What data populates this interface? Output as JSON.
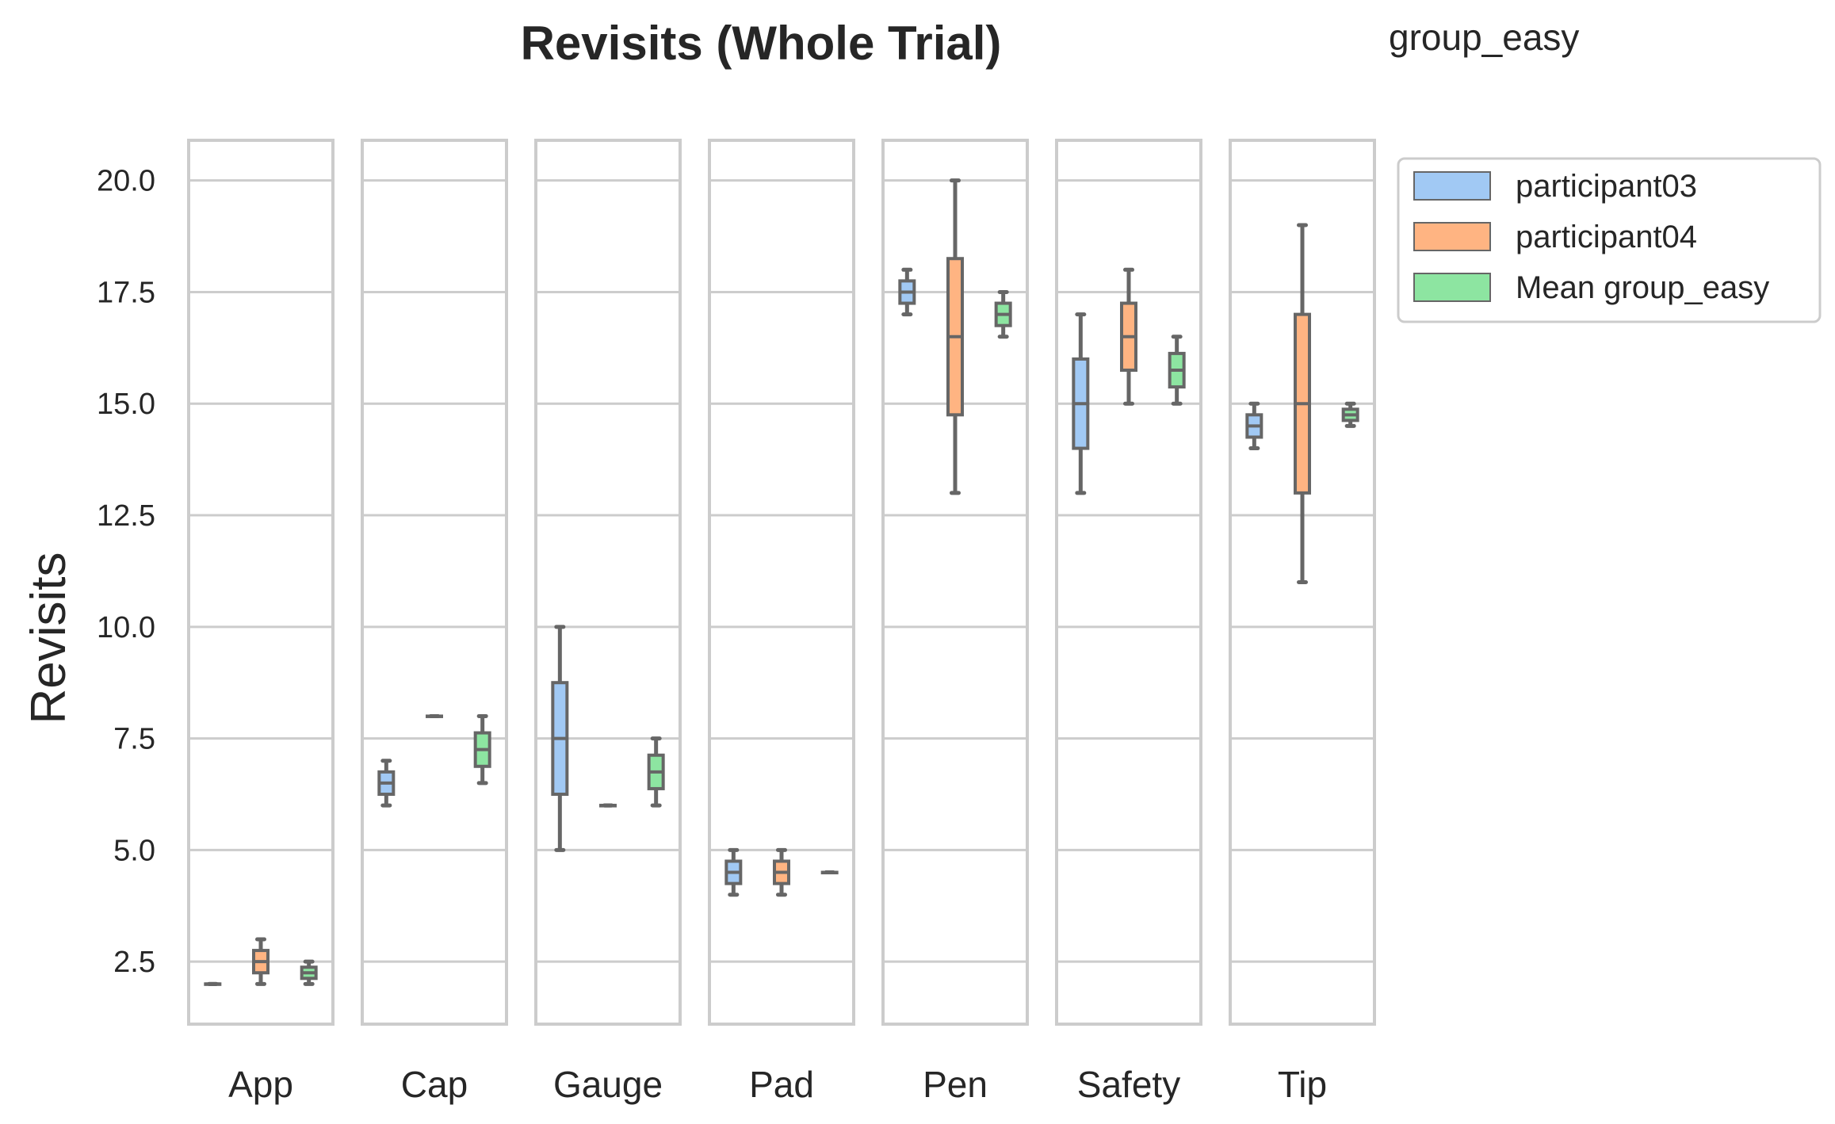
{
  "chart_data": {
    "type": "boxplot",
    "title": "Revisits (Whole Trial)",
    "subtitle": "group_easy",
    "ylabel": "Revisits",
    "ylim": [
      1.1,
      20.9
    ],
    "yticks": [
      "2.5",
      "5.0",
      "7.5",
      "10.0",
      "12.5",
      "15.0",
      "17.5",
      "20.0"
    ],
    "grid": true,
    "legend_position": "right-outside",
    "categories": [
      "App",
      "Cap",
      "Gauge",
      "Pad",
      "Pen",
      "Safety",
      "Tip"
    ],
    "colors": {
      "participant03": "#a1c9f4",
      "participant04": "#ffb482",
      "Mean group_easy": "#8de5a1",
      "line": "#666666",
      "grid": "#cccccc"
    },
    "series": [
      {
        "name": "participant03",
        "boxes": [
          {
            "category": "App",
            "min": 2.0,
            "q1": 2.0,
            "median": 2.0,
            "q3": 2.0,
            "max": 2.0
          },
          {
            "category": "Cap",
            "min": 6.0,
            "q1": 6.25,
            "median": 6.5,
            "q3": 6.75,
            "max": 7.0
          },
          {
            "category": "Gauge",
            "min": 5.0,
            "q1": 6.25,
            "median": 7.5,
            "q3": 8.75,
            "max": 10.0
          },
          {
            "category": "Pad",
            "min": 4.0,
            "q1": 4.25,
            "median": 4.5,
            "q3": 4.75,
            "max": 5.0
          },
          {
            "category": "Pen",
            "min": 17.0,
            "q1": 17.25,
            "median": 17.5,
            "q3": 17.75,
            "max": 18.0
          },
          {
            "category": "Safety",
            "min": 13.0,
            "q1": 14.0,
            "median": 15.0,
            "q3": 16.0,
            "max": 17.0
          },
          {
            "category": "Tip",
            "min": 14.0,
            "q1": 14.25,
            "median": 14.5,
            "q3": 14.75,
            "max": 15.0
          }
        ]
      },
      {
        "name": "participant04",
        "boxes": [
          {
            "category": "App",
            "min": 2.0,
            "q1": 2.25,
            "median": 2.5,
            "q3": 2.75,
            "max": 3.0
          },
          {
            "category": "Cap",
            "min": 8.0,
            "q1": 8.0,
            "median": 8.0,
            "q3": 8.0,
            "max": 8.0
          },
          {
            "category": "Gauge",
            "min": 6.0,
            "q1": 6.0,
            "median": 6.0,
            "q3": 6.0,
            "max": 6.0
          },
          {
            "category": "Pad",
            "min": 4.0,
            "q1": 4.25,
            "median": 4.5,
            "q3": 4.75,
            "max": 5.0
          },
          {
            "category": "Pen",
            "min": 13.0,
            "q1": 14.75,
            "median": 16.5,
            "q3": 18.25,
            "max": 20.0
          },
          {
            "category": "Safety",
            "min": 15.0,
            "q1": 15.75,
            "median": 16.5,
            "q3": 17.25,
            "max": 18.0
          },
          {
            "category": "Tip",
            "min": 11.0,
            "q1": 13.0,
            "median": 15.0,
            "q3": 17.0,
            "max": 19.0
          }
        ]
      },
      {
        "name": "Mean group_easy",
        "boxes": [
          {
            "category": "App",
            "min": 2.0,
            "q1": 2.125,
            "median": 2.25,
            "q3": 2.375,
            "max": 2.5
          },
          {
            "category": "Cap",
            "min": 6.5,
            "q1": 6.875,
            "median": 7.25,
            "q3": 7.625,
            "max": 8.0
          },
          {
            "category": "Gauge",
            "min": 6.0,
            "q1": 6.375,
            "median": 6.75,
            "q3": 7.125,
            "max": 7.5
          },
          {
            "category": "Pad",
            "min": 4.5,
            "q1": 4.5,
            "median": 4.5,
            "q3": 4.5,
            "max": 4.5
          },
          {
            "category": "Pen",
            "min": 16.5,
            "q1": 16.75,
            "median": 17.0,
            "q3": 17.25,
            "max": 17.5
          },
          {
            "category": "Safety",
            "min": 15.0,
            "q1": 15.375,
            "median": 15.75,
            "q3": 16.125,
            "max": 16.5
          },
          {
            "category": "Tip",
            "min": 14.5,
            "q1": 14.625,
            "median": 14.75,
            "q3": 14.875,
            "max": 15.0
          }
        ]
      }
    ]
  }
}
